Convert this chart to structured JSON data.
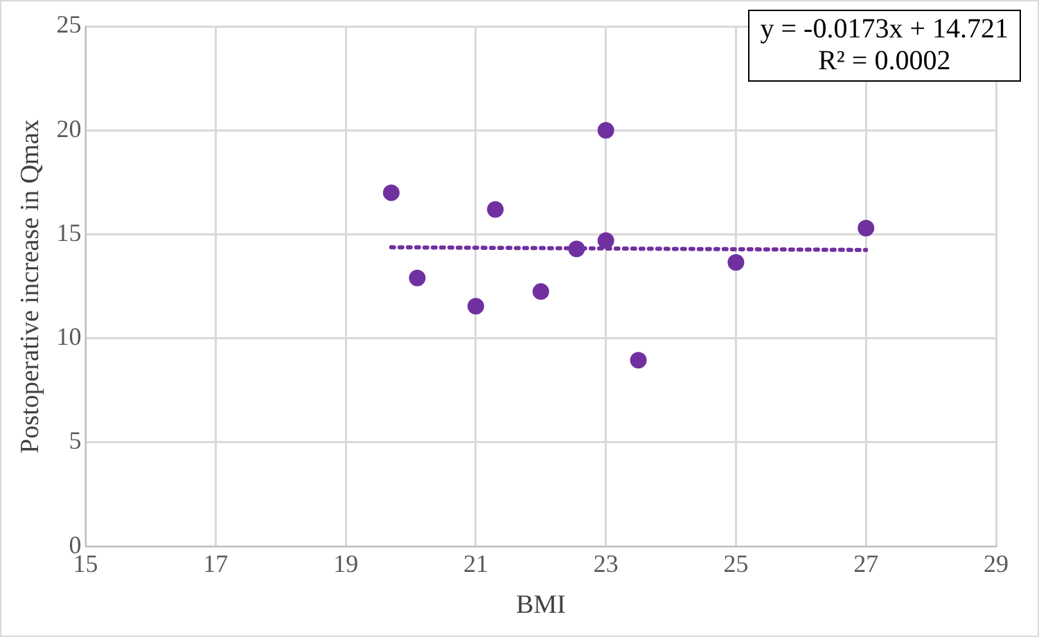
{
  "chart_data": {
    "type": "scatter",
    "xlabel": "BMI",
    "ylabel": "Postoperative increase in Qmax",
    "xlim": [
      15,
      29
    ],
    "xticks": [
      15,
      17,
      19,
      21,
      23,
      25,
      27,
      29
    ],
    "ylim": [
      0,
      25
    ],
    "yticks": [
      0,
      5,
      10,
      15,
      20,
      25
    ],
    "grid": true,
    "legend": false,
    "marker": "circle",
    "series": [
      {
        "type": "scatter",
        "color": "#7030a0",
        "x": [
          19.7,
          20.1,
          21.0,
          21.3,
          22.0,
          22.55,
          23.0,
          23.0,
          23.5,
          25.0,
          27.0
        ],
        "values": [
          17.0,
          12.9,
          11.55,
          16.2,
          12.25,
          14.3,
          14.7,
          20.0,
          8.95,
          13.65,
          15.3
        ]
      },
      {
        "type": "line",
        "color": "#7030a0",
        "line_style": "dotted",
        "marker": "none",
        "x": [
          19.7,
          27.0
        ],
        "values": [
          14.38,
          14.25
        ]
      }
    ],
    "annotations": [
      "y = -0.0173x + 14.721\nR² = 0.0002"
    ]
  }
}
